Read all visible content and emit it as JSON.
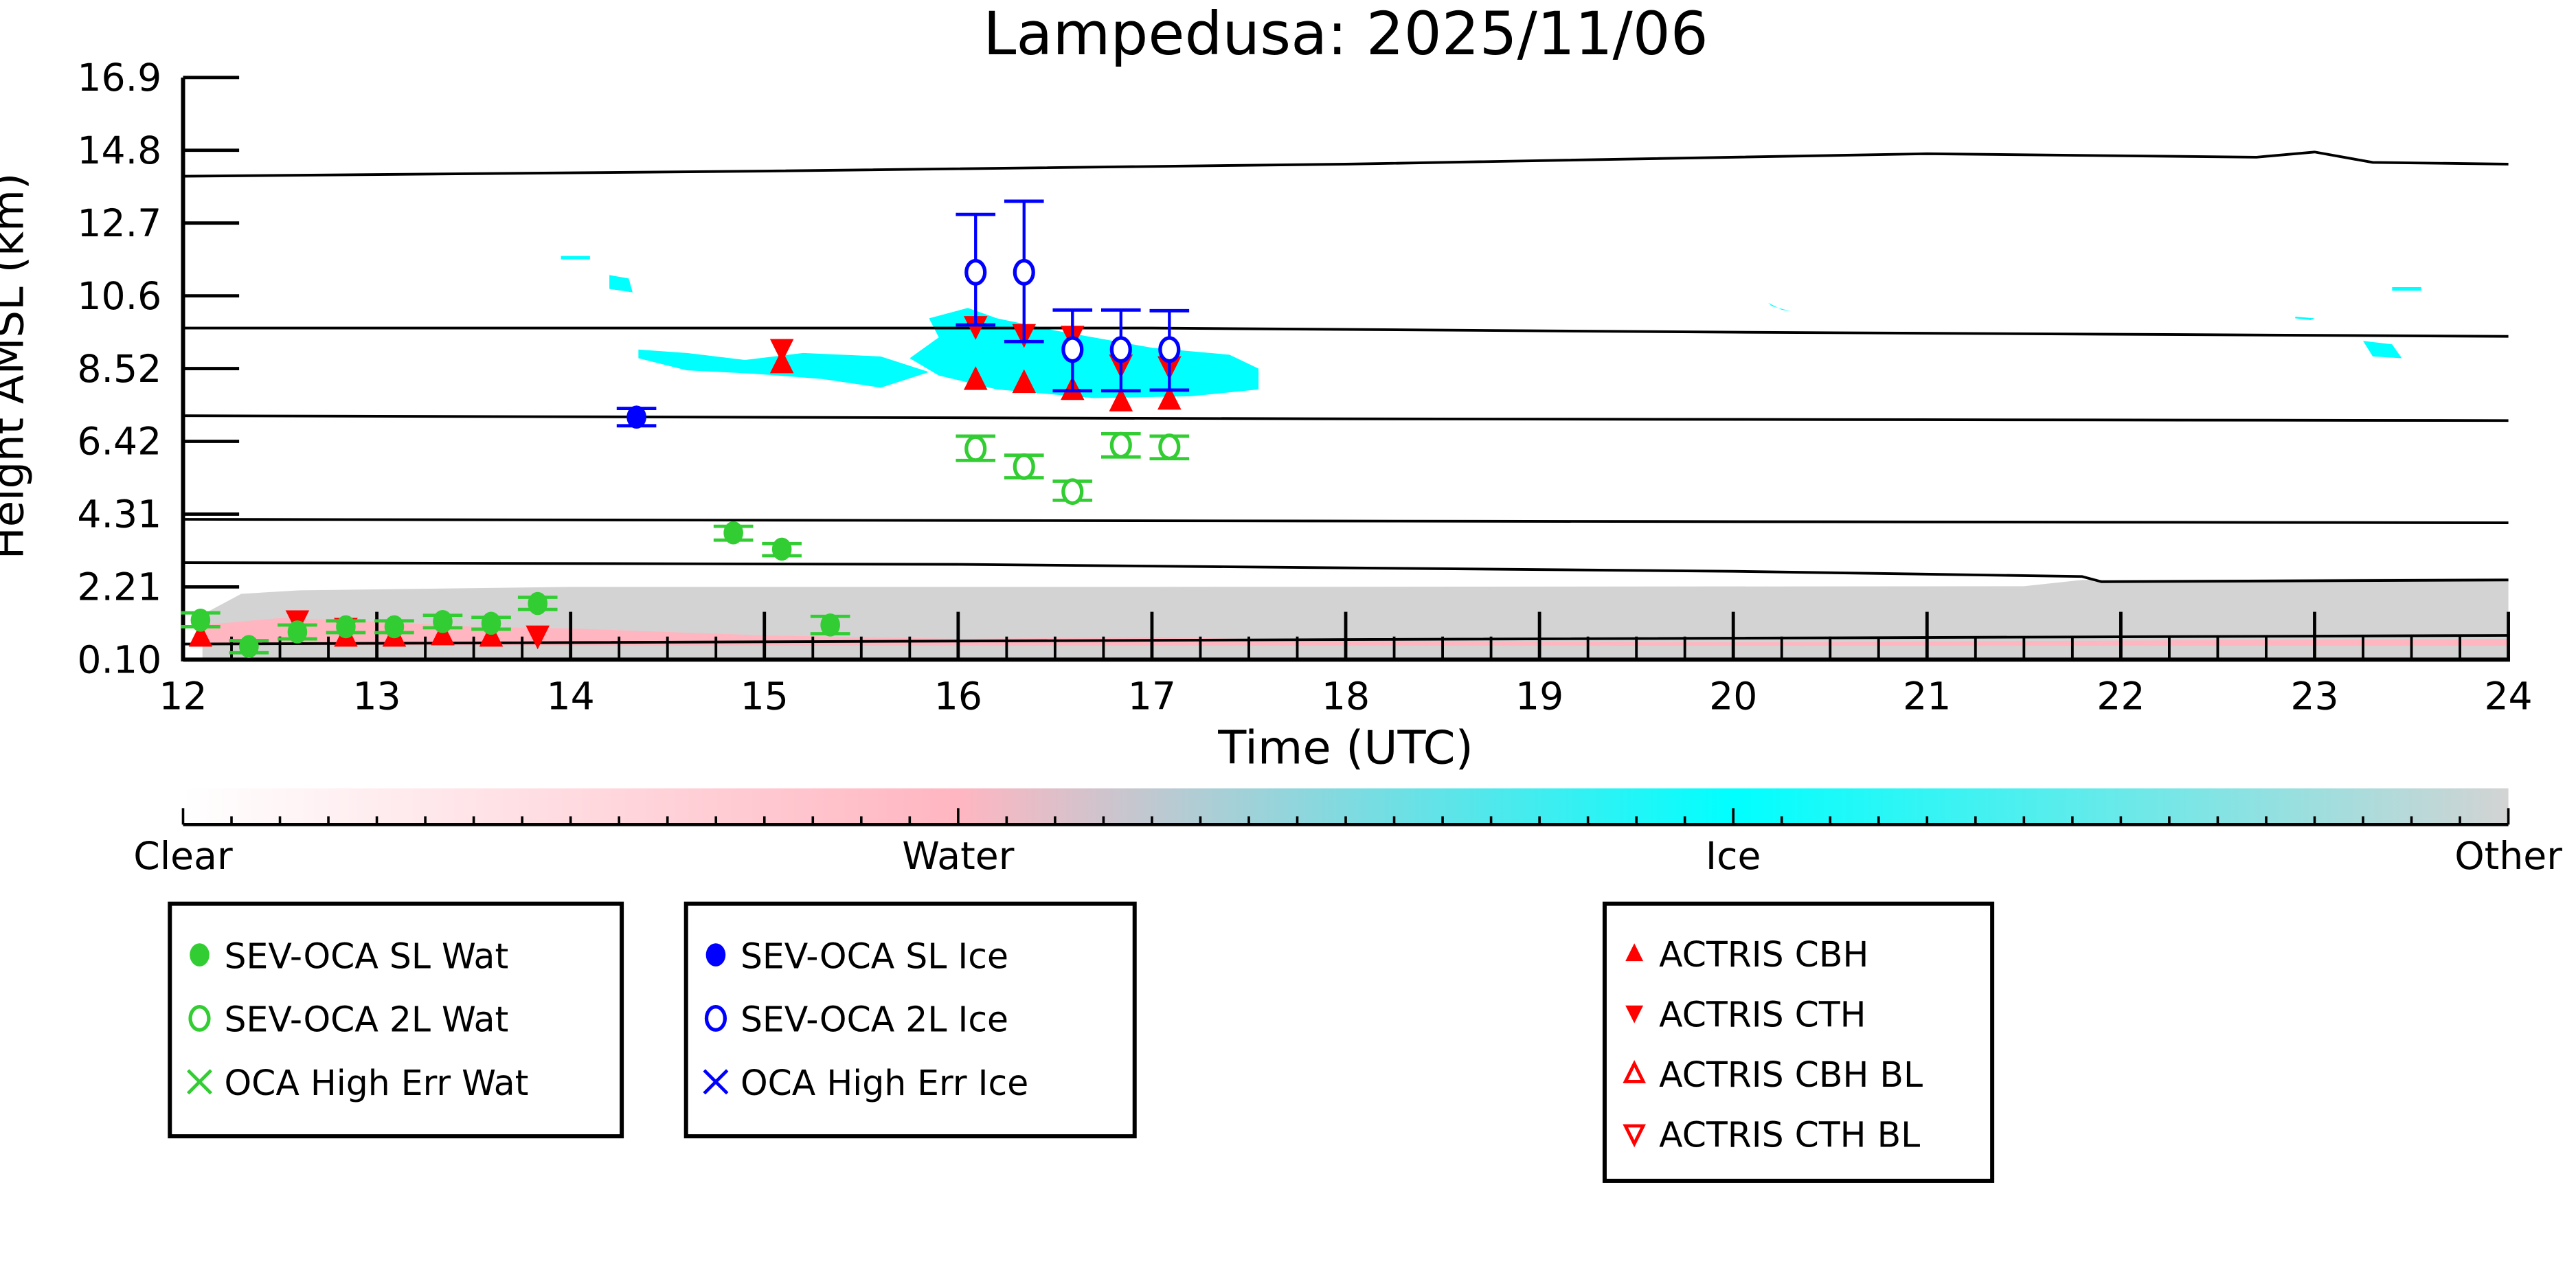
{
  "chart_data": {
    "type": "scatter",
    "title": "Lampedusa: 2025/11/06",
    "xlabel": "Time (UTC)",
    "ylabel": "Height AMSL (km)",
    "xlim": [
      12,
      24
    ],
    "ylim": [
      0.1,
      16.9
    ],
    "xticks": [
      "12",
      "13",
      "14",
      "15",
      "16",
      "17",
      "18",
      "19",
      "20",
      "21",
      "22",
      "23",
      "24"
    ],
    "yticks": [
      "0.10",
      "2.21",
      "4.31",
      "6.42",
      "8.52",
      "10.6",
      "12.7",
      "14.8",
      "16.9"
    ],
    "colorbar": {
      "labels": [
        "Clear",
        "Water",
        "Ice",
        "Other"
      ],
      "colors": [
        "#ffffff",
        "#ffb6c1",
        "#00ffff",
        "#d3d3d3"
      ]
    },
    "colors": {
      "water": "#32cd32",
      "ice": "#0000ff",
      "actris": "#ff0000",
      "other": "#d3d3d3",
      "cloud_ice": "#00ffff",
      "cloud_water": "#ffb6c1"
    },
    "mask_regions": [
      {
        "class": "Other",
        "points": [
          [
            12.1,
            0.1
          ],
          [
            12.1,
            1.4
          ],
          [
            12.3,
            2.0
          ],
          [
            12.6,
            2.1
          ],
          [
            14,
            2.2
          ],
          [
            17,
            2.2
          ],
          [
            21.5,
            2.22
          ],
          [
            21.8,
            2.4
          ],
          [
            24,
            2.45
          ],
          [
            24,
            0.1
          ]
        ]
      },
      {
        "class": "Water",
        "points": [
          [
            12.1,
            0.5
          ],
          [
            12.1,
            1.1
          ],
          [
            12.5,
            1.3
          ],
          [
            13.0,
            1.2
          ],
          [
            13.5,
            1.05
          ],
          [
            14.0,
            1.0
          ],
          [
            15.0,
            0.8
          ],
          [
            16.0,
            0.7
          ],
          [
            17.0,
            0.75
          ],
          [
            18,
            0.65
          ],
          [
            20,
            0.6
          ],
          [
            24,
            0.7
          ],
          [
            24,
            0.5
          ]
        ]
      },
      {
        "class": "Ice",
        "points": [
          [
            15.85,
            9.95
          ],
          [
            16.05,
            10.25
          ],
          [
            16.2,
            9.95
          ],
          [
            16.5,
            9.6
          ],
          [
            17.0,
            9.1
          ],
          [
            17.4,
            8.9
          ],
          [
            17.55,
            8.5
          ],
          [
            17.55,
            7.9
          ],
          [
            17.2,
            7.7
          ],
          [
            16.7,
            7.65
          ],
          [
            16.2,
            7.9
          ],
          [
            15.9,
            8.3
          ],
          [
            15.75,
            8.8
          ],
          [
            15.9,
            9.4
          ]
        ]
      },
      {
        "class": "Ice",
        "points": [
          [
            14.35,
            9.05
          ],
          [
            14.6,
            8.95
          ],
          [
            14.9,
            8.75
          ],
          [
            15.2,
            8.95
          ],
          [
            15.6,
            8.85
          ],
          [
            15.85,
            8.4
          ],
          [
            15.6,
            7.95
          ],
          [
            15.3,
            8.2
          ],
          [
            14.95,
            8.35
          ],
          [
            14.6,
            8.45
          ],
          [
            14.35,
            8.8
          ]
        ]
      },
      {
        "class": "Ice",
        "points": [
          [
            14.2,
            11.2
          ],
          [
            14.3,
            11.1
          ],
          [
            14.32,
            10.7
          ],
          [
            14.2,
            10.8
          ]
        ]
      },
      {
        "class": "Ice",
        "points": [
          [
            13.95,
            11.75
          ],
          [
            14.1,
            11.75
          ],
          [
            14.1,
            11.65
          ],
          [
            13.95,
            11.65
          ]
        ]
      },
      {
        "class": "Ice",
        "points": [
          [
            20.18,
            10.4
          ],
          [
            20.25,
            10.2
          ],
          [
            20.3,
            10.15
          ],
          [
            20.2,
            10.3
          ]
        ]
      },
      {
        "class": "Ice",
        "points": [
          [
            22.9,
            10.0
          ],
          [
            23.0,
            9.95
          ],
          [
            22.98,
            9.9
          ],
          [
            22.9,
            9.95
          ]
        ]
      },
      {
        "class": "Ice",
        "points": [
          [
            23.25,
            9.3
          ],
          [
            23.4,
            9.2
          ],
          [
            23.45,
            8.8
          ],
          [
            23.3,
            8.85
          ]
        ]
      },
      {
        "class": "Ice",
        "points": [
          [
            23.4,
            10.85
          ],
          [
            23.55,
            10.85
          ],
          [
            23.55,
            10.75
          ],
          [
            23.4,
            10.75
          ]
        ]
      }
    ],
    "contour_lines": [
      [
        [
          12,
          14.05
        ],
        [
          15,
          14.2
        ],
        [
          18,
          14.4
        ],
        [
          21,
          14.7
        ],
        [
          22.7,
          14.6
        ],
        [
          23,
          14.75
        ],
        [
          23.3,
          14.45
        ],
        [
          24,
          14.4
        ]
      ],
      [
        [
          12,
          9.67
        ],
        [
          17,
          9.67
        ],
        [
          20,
          9.55
        ],
        [
          24,
          9.43
        ]
      ],
      [
        [
          12,
          7.14
        ],
        [
          18,
          7.05
        ],
        [
          24,
          7.0
        ]
      ],
      [
        [
          12,
          4.15
        ],
        [
          24,
          4.05
        ]
      ],
      [
        [
          12,
          2.9
        ],
        [
          16,
          2.85
        ],
        [
          20,
          2.65
        ],
        [
          21.8,
          2.5
        ],
        [
          21.9,
          2.35
        ],
        [
          24,
          2.4
        ]
      ],
      [
        [
          12,
          0.55
        ],
        [
          18,
          0.68
        ],
        [
          24,
          0.8
        ]
      ]
    ],
    "series": [
      {
        "name": "SEV-OCA SL Wat",
        "marker": "filled-circle",
        "color": "#32cd32",
        "points": [
          [
            12.09,
            1.24,
            1.05,
            1.45
          ],
          [
            12.34,
            0.48,
            0.3,
            0.65
          ],
          [
            12.59,
            0.9,
            0.7,
            1.1
          ],
          [
            12.84,
            1.05,
            0.88,
            1.22
          ],
          [
            13.09,
            1.05,
            0.88,
            1.22
          ],
          [
            13.34,
            1.2,
            1.02,
            1.38
          ],
          [
            13.59,
            1.15,
            0.98,
            1.32
          ],
          [
            13.83,
            1.72,
            1.55,
            1.9
          ],
          [
            14.84,
            3.76,
            3.55,
            3.95
          ],
          [
            15.09,
            3.29,
            3.1,
            3.45
          ],
          [
            15.34,
            1.1,
            0.85,
            1.35
          ]
        ]
      },
      {
        "name": "SEV-OCA 2L Wat",
        "marker": "open-circle",
        "color": "#32cd32",
        "points": [
          [
            16.09,
            6.19,
            5.85,
            6.55
          ],
          [
            16.34,
            5.67,
            5.35,
            6.0
          ],
          [
            16.59,
            4.95,
            4.7,
            5.25
          ],
          [
            16.84,
            6.29,
            5.95,
            6.62
          ],
          [
            17.09,
            6.24,
            5.9,
            6.55
          ]
        ]
      },
      {
        "name": "OCA High Err Wat",
        "marker": "x",
        "color": "#32cd32",
        "points": []
      },
      {
        "name": "SEV-OCA SL Ice",
        "marker": "filled-circle",
        "color": "#0000ff",
        "points": [
          [
            14.34,
            7.1,
            6.85,
            7.35
          ]
        ]
      },
      {
        "name": "SEV-OCA 2L Ice",
        "marker": "open-circle",
        "color": "#0000ff",
        "points": [
          [
            16.09,
            11.28,
            9.76,
            12.95
          ],
          [
            16.34,
            11.28,
            9.28,
            13.33
          ],
          [
            16.59,
            9.05,
            7.86,
            10.19
          ],
          [
            16.84,
            9.05,
            7.86,
            10.19
          ],
          [
            17.09,
            9.05,
            7.88,
            10.17
          ]
        ]
      },
      {
        "name": "OCA High Err Ice",
        "marker": "x",
        "color": "#0000ff",
        "points": []
      },
      {
        "name": "ACTRIS CBH",
        "marker": "triangle-up",
        "color": "#ff0000",
        "points": [
          [
            12.09,
            0.78
          ],
          [
            12.84,
            0.78
          ],
          [
            13.09,
            0.78
          ],
          [
            13.34,
            0.82
          ],
          [
            13.59,
            0.78
          ],
          [
            15.09,
            8.67
          ],
          [
            16.09,
            8.19
          ],
          [
            16.34,
            8.1
          ],
          [
            16.59,
            7.9
          ],
          [
            16.84,
            7.57
          ],
          [
            17.09,
            7.62
          ]
        ]
      },
      {
        "name": "ACTRIS CTH",
        "marker": "triangle-down",
        "color": "#ff0000",
        "points": [
          [
            12.59,
            1.22
          ],
          [
            12.84,
            1.0
          ],
          [
            13.83,
            0.78
          ],
          [
            15.09,
            9.05
          ],
          [
            16.09,
            9.71
          ],
          [
            16.34,
            9.48
          ],
          [
            16.59,
            9.43
          ],
          [
            16.84,
            8.6
          ],
          [
            17.09,
            8.55
          ]
        ]
      },
      {
        "name": "ACTRIS CBH BL",
        "marker": "open-triangle-up",
        "color": "#ff0000",
        "points": []
      },
      {
        "name": "ACTRIS CTH BL",
        "marker": "open-triangle-down",
        "color": "#ff0000",
        "points": []
      }
    ],
    "legends": [
      [
        "SEV-OCA SL Wat",
        "SEV-OCA 2L Wat",
        "OCA High Err Wat"
      ],
      [
        "SEV-OCA SL Ice",
        "SEV-OCA 2L Ice",
        "OCA High Err Ice"
      ],
      [
        "ACTRIS CBH",
        "ACTRIS CTH",
        "ACTRIS CBH BL",
        "ACTRIS CTH BL"
      ]
    ]
  }
}
